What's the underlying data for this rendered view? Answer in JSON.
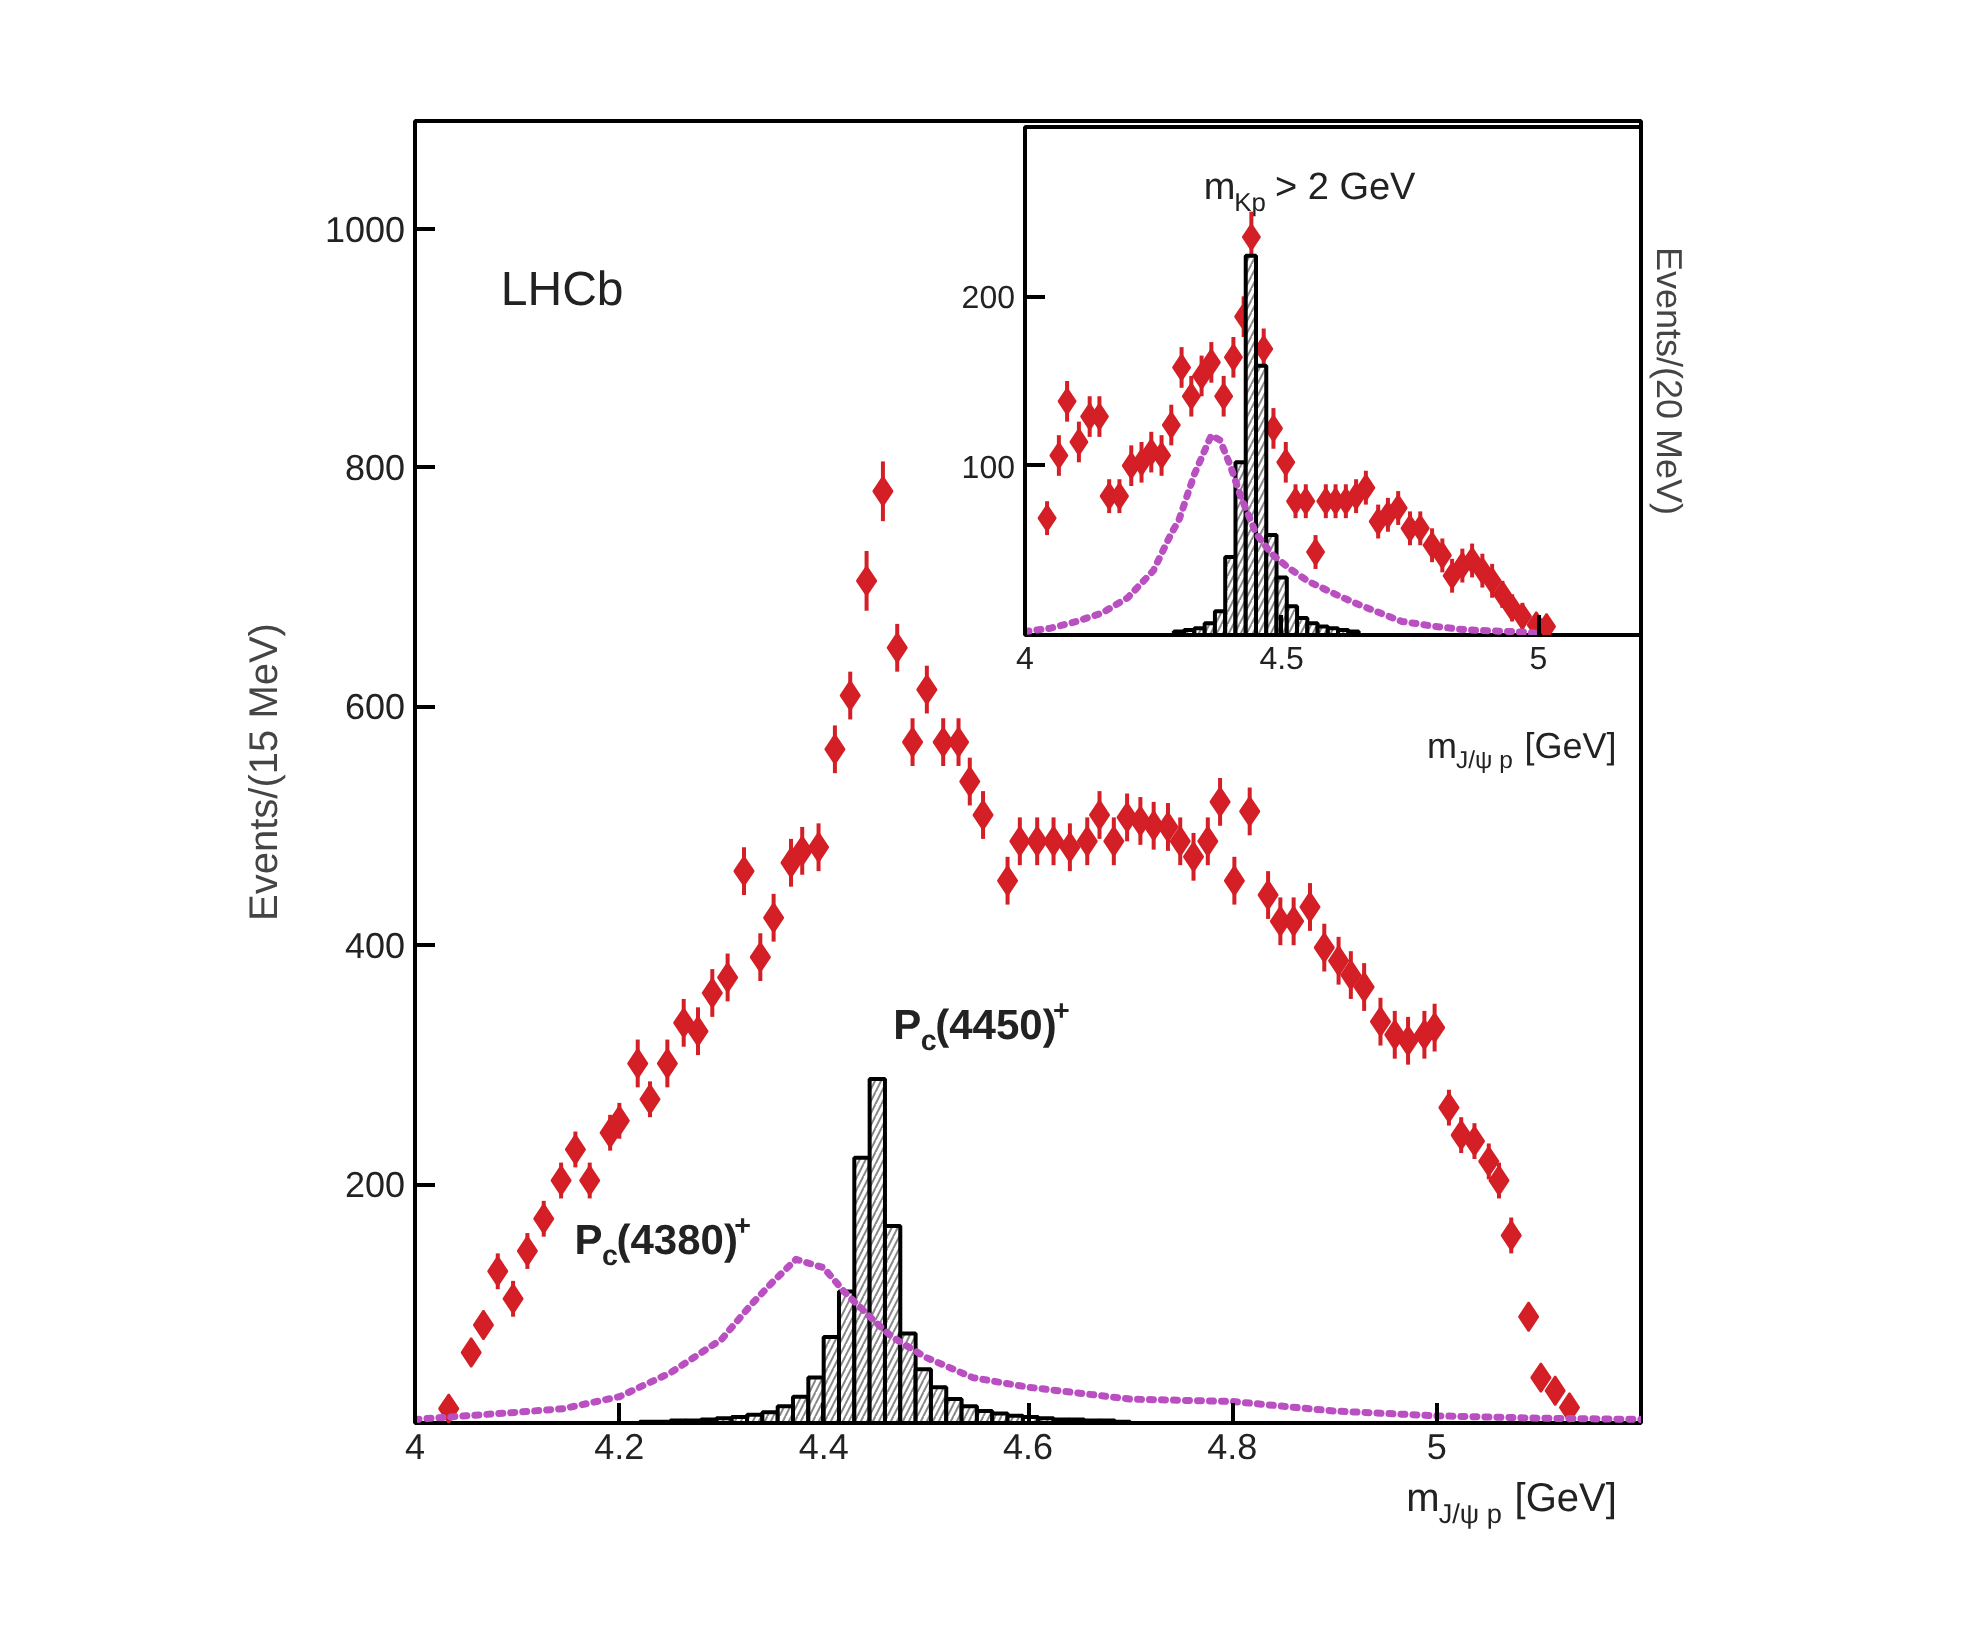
{
  "chart_data": [
    {
      "type": "scatter",
      "xlabel": "m$_{J/ψ p}$ [GeV]",
      "ylabel": "Events/(15 MeV)",
      "xlim": [
        4,
        5.2
      ],
      "ylim": [
        0,
        1090
      ],
      "xticks": [
        4,
        4.2,
        4.4,
        4.6,
        4.8,
        5
      ],
      "yticks": [
        200,
        400,
        600,
        800,
        1000
      ],
      "grid": false,
      "annotations": [
        "LHCb",
        "P$_{c}$(4450)$^{+}$",
        "P$_{c}$(4380)$^{+}$"
      ],
      "series": [
        {
          "marker": "diamond",
          "color": "#d41f26",
          "x": [
            4.033,
            4.055,
            4.067,
            4.081,
            4.096,
            4.11,
            4.126,
            4.143,
            4.157,
            4.171,
            4.191,
            4.2,
            4.218,
            4.23,
            4.247,
            4.263,
            4.277,
            4.291,
            4.306,
            4.322,
            4.338,
            4.351,
            4.368,
            4.379,
            4.395,
            4.411,
            4.426,
            4.442,
            4.458,
            4.472,
            4.487,
            4.501,
            4.517,
            4.532,
            4.543,
            4.556,
            4.58,
            4.592,
            4.609,
            4.625,
            4.641,
            4.658,
            4.67,
            4.684,
            4.697,
            4.71,
            4.723,
            4.737,
            4.749,
            4.762,
            4.776,
            4.788,
            4.802,
            4.817,
            4.835,
            4.847,
            4.86,
            4.876,
            4.89,
            4.904,
            4.916,
            4.929,
            4.945,
            4.959,
            4.972,
            4.988,
            4.998,
            5.012,
            5.024,
            5.037,
            5.051,
            5.061,
            5.073,
            5.09,
            5.102,
            5.116,
            5.13
          ],
          "values": [
            12,
            59,
            82,
            127,
            104,
            144,
            171,
            203,
            229,
            203,
            243,
            253,
            301,
            271,
            301,
            335,
            328,
            360,
            373,
            462,
            390,
            423,
            469,
            479,
            482,
            564,
            609,
            705,
            780,
            649,
            570,
            614,
            570,
            570,
            537,
            509,
            454,
            487,
            487,
            487,
            482,
            487,
            509,
            487,
            507,
            504,
            500,
            499,
            487,
            474,
            487,
            520,
            454,
            512,
            442,
            420,
            420,
            432,
            398,
            387,
            375,
            365,
            336,
            325,
            320,
            325,
            331,
            264,
            241,
            236,
            219,
            203,
            157,
            89,
            38,
            27,
            13
          ],
          "errors": [
            10,
            10,
            10,
            15,
            15,
            15,
            15,
            15,
            15,
            15,
            15,
            15,
            20,
            15,
            20,
            20,
            20,
            20,
            20,
            20,
            20,
            20,
            20,
            20,
            20,
            20,
            20,
            25,
            25,
            20,
            20,
            20,
            20,
            20,
            20,
            20,
            20,
            20,
            20,
            20,
            20,
            20,
            20,
            20,
            20,
            20,
            20,
            20,
            20,
            20,
            20,
            20,
            20,
            20,
            20,
            20,
            20,
            20,
            20,
            20,
            20,
            20,
            20,
            20,
            20,
            20,
            20,
            15,
            15,
            15,
            15,
            15,
            15,
            10,
            10,
            10,
            10
          ]
        },
        {
          "type": "histogram",
          "color": "#000000",
          "bins": [
            4.22,
            4.235,
            4.25,
            4.265,
            4.28,
            4.295,
            4.31,
            4.325,
            4.34,
            4.355,
            4.37,
            4.385,
            4.4,
            4.415,
            4.43,
            4.445,
            4.46,
            4.475,
            4.49,
            4.505,
            4.52,
            4.535,
            4.55,
            4.565,
            4.58,
            4.595,
            4.61,
            4.625,
            4.64,
            4.655,
            4.67,
            4.685,
            4.7
          ],
          "values": [
            1,
            1,
            2,
            2,
            3,
            4,
            5,
            7,
            9,
            14,
            22,
            38,
            72,
            110,
            222,
            288,
            165,
            75,
            45,
            30,
            20,
            14,
            10,
            8,
            6,
            5,
            4,
            3,
            3,
            2,
            2,
            1
          ]
        },
        {
          "type": "line",
          "line_style": "dotted",
          "color": "#b94fc0",
          "x": [
            4.0,
            4.05,
            4.1,
            4.145,
            4.2,
            4.225,
            4.25,
            4.3,
            4.33,
            4.35,
            4.373,
            4.4,
            4.42,
            4.45,
            4.467,
            4.5,
            4.546,
            4.6,
            4.7,
            4.8,
            4.9,
            5.0,
            5.1,
            5.2
          ],
          "values": [
            3,
            6,
            9,
            12,
            22,
            32,
            42,
            70,
            100,
            118,
            137,
            130,
            110,
            85,
            72,
            55,
            38,
            30,
            20,
            18,
            10,
            6,
            4,
            3
          ]
        }
      ]
    },
    {
      "type": "scatter",
      "xlabel": "m$_{J/ψ p}$ [GeV]",
      "ylabel": "Events/(20 MeV)",
      "xlim": [
        4,
        5.2
      ],
      "ylim": [
        0,
        300
      ],
      "xticks": [
        4,
        4.5,
        5
      ],
      "yticks": [
        100,
        200
      ],
      "grid": false,
      "annotations": [
        "m$_{Kp}$ > 2 GeV"
      ],
      "series": [
        {
          "marker": "diamond",
          "color": "#d41f26",
          "x": [
            4.043,
            4.066,
            4.082,
            4.105,
            4.126,
            4.145,
            4.164,
            4.184,
            4.207,
            4.227,
            4.246,
            4.266,
            4.285,
            4.305,
            4.324,
            4.344,
            4.363,
            4.387,
            4.406,
            4.426,
            4.441,
            4.465,
            4.484,
            4.508,
            4.527,
            4.547,
            4.566,
            4.586,
            4.605,
            4.625,
            4.645,
            4.664,
            4.688,
            4.707,
            4.727,
            4.75,
            4.77,
            4.793,
            4.813,
            4.832,
            4.852,
            4.871,
            4.891,
            4.91,
            4.93,
            4.949,
            4.969,
            4.996,
            5.016
          ],
          "values": [
            69,
            106,
            138,
            114,
            129,
            129,
            82,
            82,
            100,
            102,
            108,
            106,
            124,
            158,
            141,
            153,
            161,
            141,
            164,
            188,
            235,
            169,
            122,
            102,
            79,
            79,
            49,
            79,
            79,
            79,
            82,
            87,
            67,
            71,
            75,
            63,
            63,
            53,
            47,
            35,
            41,
            44,
            38,
            32,
            24,
            16,
            11,
            6,
            5
          ],
          "errors": [
            10,
            12,
            12,
            12,
            12,
            12,
            10,
            10,
            12,
            12,
            12,
            12,
            12,
            12,
            12,
            12,
            12,
            12,
            12,
            12,
            15,
            12,
            12,
            12,
            10,
            10,
            10,
            10,
            10,
            10,
            10,
            10,
            10,
            10,
            10,
            10,
            10,
            10,
            10,
            10,
            10,
            10,
            10,
            10,
            8,
            8,
            8,
            6,
            6
          ]
        },
        {
          "type": "histogram",
          "color": "#000000",
          "bins": [
            4.29,
            4.31,
            4.33,
            4.35,
            4.37,
            4.39,
            4.41,
            4.43,
            4.45,
            4.47,
            4.49,
            4.51,
            4.53,
            4.55,
            4.57,
            4.59,
            4.61,
            4.63,
            4.65
          ],
          "values": [
            2,
            3,
            4,
            7,
            14,
            46,
            102,
            224,
            159,
            59,
            34,
            17,
            10,
            7,
            5,
            4,
            3,
            2
          ]
        },
        {
          "type": "line",
          "line_style": "dotted",
          "color": "#b94fc0",
          "x": [
            4.0,
            4.05,
            4.1,
            4.15,
            4.2,
            4.25,
            4.285,
            4.3,
            4.33,
            4.363,
            4.38,
            4.4,
            4.42,
            4.45,
            4.48,
            4.512,
            4.55,
            4.605,
            4.65,
            4.734,
            4.8,
            4.86,
            4.95,
            5.0
          ],
          "values": [
            2,
            4,
            8,
            13,
            22,
            38,
            60,
            68,
            95,
            118,
            115,
            100,
            82,
            60,
            48,
            40,
            32,
            24,
            18,
            8,
            5,
            3,
            2,
            1
          ]
        }
      ]
    }
  ]
}
